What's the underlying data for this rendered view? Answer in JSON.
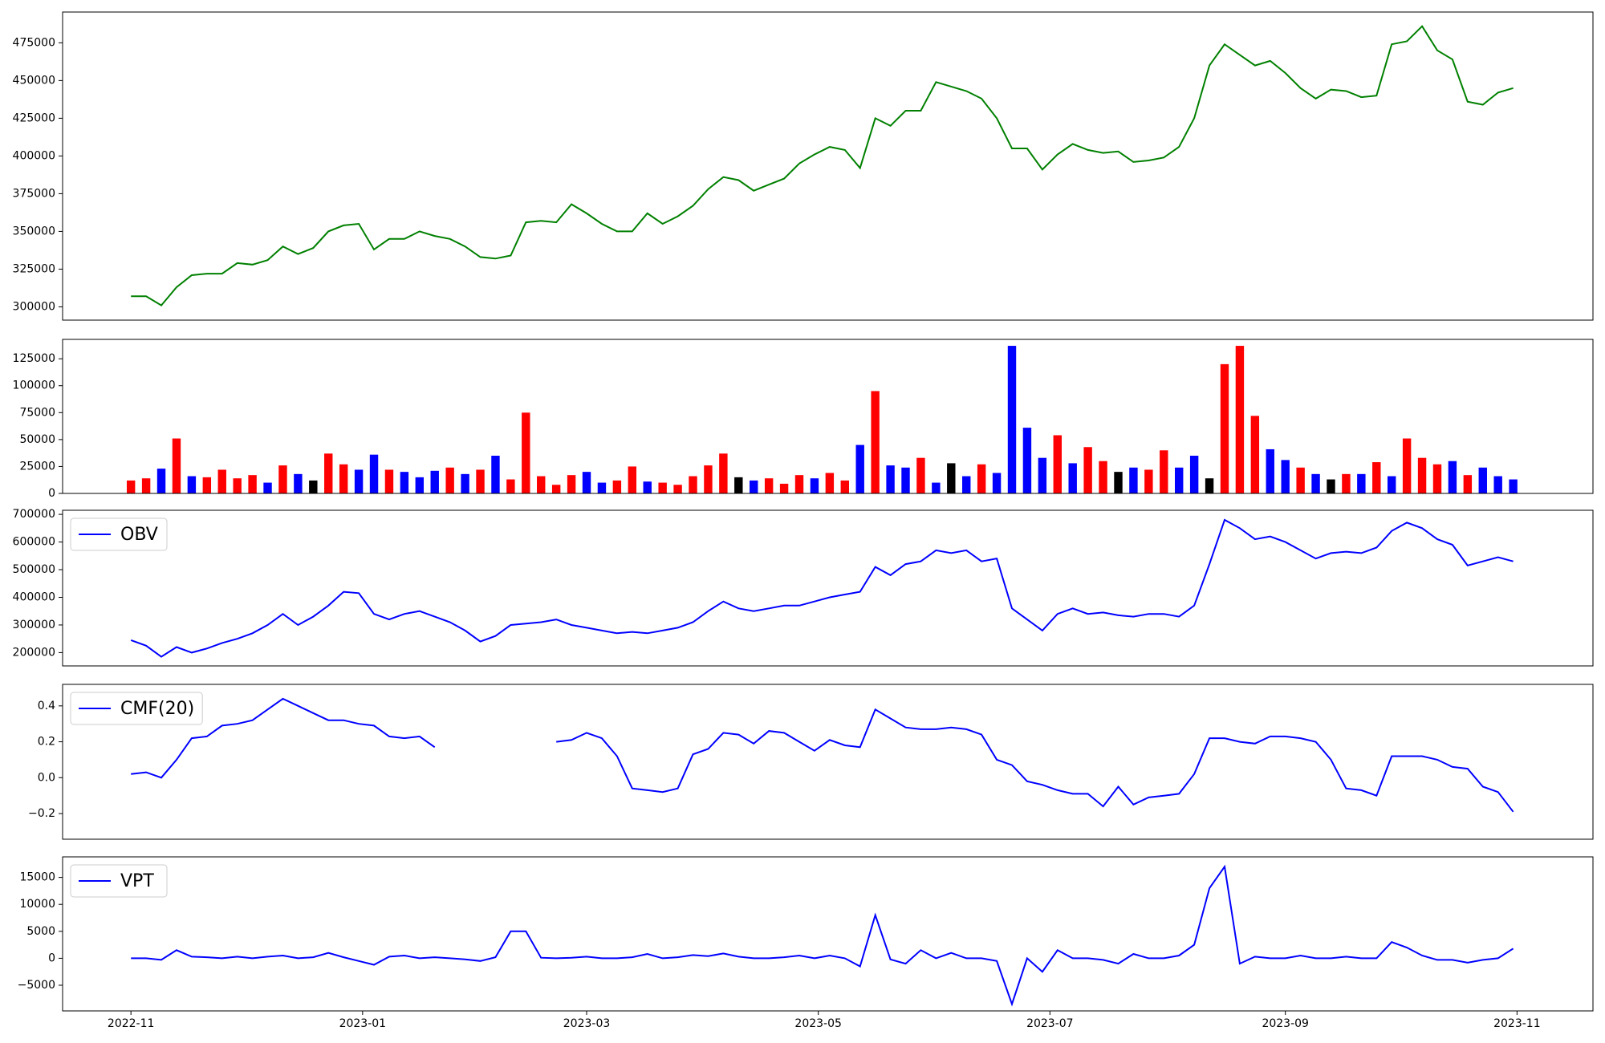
{
  "chart_data": [
    {
      "type": "line",
      "color": "green",
      "x": [
        0,
        4,
        8,
        12,
        16,
        20,
        24,
        28,
        32,
        36,
        40,
        44,
        48,
        52,
        56,
        60,
        64,
        68,
        72,
        76,
        80,
        84,
        88,
        92,
        96,
        100,
        104,
        108,
        112,
        116,
        120,
        124,
        128,
        132,
        136,
        140,
        144,
        148,
        152,
        156,
        160,
        164,
        168,
        172,
        176,
        180,
        184,
        188,
        192,
        196,
        200,
        204,
        208,
        212,
        216,
        220,
        224,
        228,
        232,
        236,
        240,
        244,
        248,
        252,
        256,
        260,
        264,
        268,
        272,
        276,
        280,
        284,
        288,
        292,
        296,
        300,
        304,
        308,
        312,
        316,
        320,
        324,
        328,
        332,
        336,
        340,
        344,
        348,
        352,
        356,
        360,
        364
      ],
      "values": [
        307000,
        307000,
        301000,
        313000,
        321000,
        322000,
        322000,
        329000,
        328000,
        331000,
        340000,
        335000,
        339000,
        350000,
        354000,
        355000,
        338000,
        345000,
        345000,
        350000,
        347000,
        345000,
        340000,
        333000,
        332000,
        334000,
        356000,
        357000,
        356000,
        368000,
        362000,
        355000,
        350000,
        350000,
        362000,
        355000,
        360000,
        367000,
        378000,
        386000,
        384000,
        377000,
        381000,
        385000,
        395000,
        401000,
        406000,
        404000,
        392000,
        425000,
        420000,
        430000,
        430000,
        449000,
        446000,
        443000,
        438000,
        425000,
        405000,
        405000,
        391000,
        401000,
        408000,
        404000,
        402000,
        403000,
        396000,
        397000,
        399000,
        406000,
        425000,
        460000,
        474000,
        467000,
        460000,
        463000,
        455000,
        445000,
        438000,
        444000,
        443000,
        439000,
        440000,
        474000,
        476000,
        486000,
        470000,
        464000,
        436000,
        434000,
        442000,
        445000
      ],
      "xlim": [
        -18,
        385
      ],
      "ylim": [
        291200,
        495400
      ],
      "yticks": [
        300000,
        325000,
        350000,
        375000,
        400000,
        425000,
        450000,
        475000
      ]
    },
    {
      "type": "bar",
      "x": [
        0,
        4,
        8,
        12,
        16,
        20,
        24,
        28,
        32,
        36,
        40,
        44,
        48,
        52,
        56,
        60,
        64,
        68,
        72,
        76,
        80,
        84,
        88,
        92,
        96,
        100,
        104,
        108,
        112,
        116,
        120,
        124,
        128,
        132,
        136,
        140,
        144,
        148,
        152,
        156,
        160,
        164,
        168,
        172,
        176,
        180,
        184,
        188,
        192,
        196,
        200,
        204,
        208,
        212,
        216,
        220,
        224,
        228,
        232,
        236,
        240,
        244,
        248,
        252,
        256,
        260,
        264,
        268,
        272,
        276,
        280,
        284,
        288,
        292,
        296,
        300,
        304,
        308,
        312,
        316,
        320,
        324,
        328,
        332,
        336,
        340,
        344,
        348,
        352,
        356,
        360,
        364
      ],
      "values": [
        12000,
        14000,
        23000,
        51000,
        16000,
        15000,
        22000,
        14000,
        17000,
        10000,
        26000,
        18000,
        12000,
        37000,
        27000,
        22000,
        36000,
        22000,
        20000,
        15000,
        21000,
        24000,
        18000,
        22000,
        35000,
        13000,
        75000,
        16000,
        8000,
        17000,
        20000,
        10000,
        12000,
        25000,
        11000,
        10000,
        8000,
        16000,
        26000,
        37000,
        15000,
        12000,
        14000,
        9000,
        17000,
        14000,
        19000,
        12000,
        45000,
        95000,
        26000,
        24000,
        33000,
        10000,
        28000,
        16000,
        27000,
        19000,
        137000,
        61000,
        33000,
        54000,
        28000,
        43000,
        30000,
        20000,
        24000,
        22000,
        40000,
        24000,
        35000,
        14000,
        120000,
        137000,
        72000,
        41000,
        31000,
        24000,
        18000,
        13000,
        18000,
        18000,
        29000,
        16000,
        51000,
        33000,
        27000,
        30000,
        17000,
        24000,
        16000,
        13000
      ],
      "colors": [
        "red",
        "red",
        "blue",
        "red",
        "blue",
        "red",
        "red",
        "red",
        "red",
        "blue",
        "red",
        "blue",
        "black",
        "red",
        "red",
        "blue",
        "blue",
        "red",
        "blue",
        "blue",
        "blue",
        "red",
        "blue",
        "red",
        "blue",
        "red",
        "red",
        "red",
        "red",
        "red",
        "blue",
        "blue",
        "red",
        "red",
        "blue",
        "red",
        "red",
        "red",
        "red",
        "red",
        "black",
        "blue",
        "red",
        "red",
        "red",
        "blue",
        "red",
        "red",
        "blue",
        "red",
        "blue",
        "blue",
        "red",
        "blue",
        "black",
        "blue",
        "red",
        "blue",
        "blue",
        "blue",
        "blue",
        "red",
        "blue",
        "red",
        "red",
        "black",
        "blue",
        "red",
        "red",
        "blue",
        "blue",
        "black",
        "red",
        "red",
        "red",
        "blue",
        "blue",
        "red",
        "blue",
        "black",
        "red",
        "blue",
        "red",
        "blue",
        "red",
        "red",
        "red",
        "blue",
        "red",
        "blue",
        "blue",
        "blue"
      ],
      "xlim": [
        -18,
        385
      ],
      "ylim": [
        0,
        143000
      ],
      "yticks": [
        0,
        25000,
        50000,
        75000,
        100000,
        125000
      ]
    },
    {
      "type": "line",
      "legend": "upper left",
      "x": [
        0,
        4,
        8,
        12,
        16,
        20,
        24,
        28,
        32,
        36,
        40,
        44,
        48,
        52,
        56,
        60,
        64,
        68,
        72,
        76,
        80,
        84,
        88,
        92,
        96,
        100,
        104,
        108,
        112,
        116,
        120,
        124,
        128,
        132,
        136,
        140,
        144,
        148,
        152,
        156,
        160,
        164,
        168,
        172,
        176,
        180,
        184,
        188,
        192,
        196,
        200,
        204,
        208,
        212,
        216,
        220,
        224,
        228,
        232,
        236,
        240,
        244,
        248,
        252,
        256,
        260,
        264,
        268,
        272,
        276,
        280,
        284,
        288,
        292,
        296,
        300,
        304,
        308,
        312,
        316,
        320,
        324,
        328,
        332,
        336,
        340,
        344,
        348,
        352,
        356,
        360,
        364
      ],
      "series": [
        {
          "name": "OBV",
          "color": "blue",
          "values": [
            245000,
            225000,
            185000,
            220000,
            200000,
            215000,
            235000,
            250000,
            270000,
            300000,
            340000,
            300000,
            330000,
            370000,
            420000,
            415000,
            340000,
            320000,
            340000,
            350000,
            330000,
            310000,
            280000,
            240000,
            260000,
            300000,
            305000,
            310000,
            320000,
            300000,
            290000,
            280000,
            270000,
            275000,
            270000,
            280000,
            290000,
            310000,
            350000,
            385000,
            360000,
            350000,
            360000,
            370000,
            370000,
            385000,
            400000,
            410000,
            420000,
            510000,
            480000,
            520000,
            530000,
            570000,
            560000,
            570000,
            530000,
            540000,
            360000,
            320000,
            280000,
            340000,
            360000,
            340000,
            345000,
            335000,
            330000,
            340000,
            340000,
            330000,
            370000,
            520000,
            680000,
            650000,
            610000,
            620000,
            600000,
            570000,
            540000,
            560000,
            565000,
            560000,
            580000,
            640000,
            670000,
            650000,
            610000,
            590000,
            515000,
            530000,
            545000,
            530000
          ]
        }
      ],
      "xlim": [
        -18,
        385
      ],
      "ylim": [
        151900,
        714800
      ],
      "yticks": [
        200000,
        300000,
        400000,
        500000,
        600000,
        700000
      ]
    },
    {
      "type": "line",
      "legend": "upper left",
      "x": [
        0,
        4,
        8,
        12,
        16,
        20,
        24,
        28,
        32,
        36,
        40,
        44,
        48,
        52,
        56,
        60,
        64,
        68,
        72,
        76,
        80,
        84,
        88,
        92,
        96,
        100,
        104,
        108,
        112,
        116,
        120,
        124,
        128,
        132,
        136,
        140,
        144,
        148,
        152,
        156,
        160,
        164,
        168,
        172,
        176,
        180,
        184,
        188,
        192,
        196,
        200,
        204,
        208,
        212,
        216,
        220,
        224,
        228,
        232,
        236,
        240,
        244,
        248,
        252,
        256,
        260,
        264,
        268,
        272,
        276,
        280,
        284,
        288,
        292,
        296,
        300,
        304,
        308,
        312,
        316,
        320,
        324,
        328,
        332,
        336,
        340,
        344,
        348,
        352,
        356,
        360,
        364
      ],
      "series": [
        {
          "name": "CMF(20)",
          "color": "blue",
          "values": [
            0.02,
            0.03,
            0.0,
            0.1,
            0.22,
            0.23,
            0.29,
            0.3,
            0.32,
            0.38,
            0.44,
            0.4,
            0.36,
            0.32,
            0.32,
            0.3,
            0.29,
            0.23,
            0.22,
            0.23,
            0.17,
            null,
            null,
            null,
            null,
            null,
            null,
            null,
            0.2,
            0.21,
            0.25,
            0.22,
            0.12,
            -0.06,
            -0.07,
            -0.08,
            -0.06,
            0.13,
            0.16,
            0.25,
            0.24,
            0.19,
            0.26,
            0.25,
            0.2,
            0.15,
            0.21,
            0.18,
            0.17,
            0.38,
            0.33,
            0.28,
            0.27,
            0.27,
            0.28,
            0.27,
            0.24,
            0.1,
            0.07,
            -0.02,
            -0.04,
            -0.07,
            -0.09,
            -0.09,
            -0.16,
            -0.05,
            -0.15,
            -0.11,
            -0.1,
            -0.09,
            0.02,
            0.22,
            0.22,
            0.2,
            0.19,
            0.23,
            0.23,
            0.22,
            0.2,
            0.1,
            -0.06,
            -0.07,
            -0.1,
            0.12,
            0.12,
            0.12,
            0.1,
            0.06,
            0.05,
            -0.05,
            -0.08,
            -0.19
          ]
        }
      ],
      "xlim": [
        -18,
        385
      ],
      "ylim": [
        -0.343,
        0.52
      ],
      "yticks": [
        {
          "value": -0.2,
          "label": "−0.2"
        },
        {
          "value": 0,
          "label": "0.0"
        },
        0.2,
        0.4
      ]
    },
    {
      "type": "line",
      "legend": "upper left",
      "x": [
        0,
        4,
        8,
        12,
        16,
        20,
        24,
        28,
        32,
        36,
        40,
        44,
        48,
        52,
        56,
        60,
        64,
        68,
        72,
        76,
        80,
        84,
        88,
        92,
        96,
        100,
        104,
        108,
        112,
        116,
        120,
        124,
        128,
        132,
        136,
        140,
        144,
        148,
        152,
        156,
        160,
        164,
        168,
        172,
        176,
        180,
        184,
        188,
        192,
        196,
        200,
        204,
        208,
        212,
        216,
        220,
        224,
        228,
        232,
        236,
        240,
        244,
        248,
        252,
        256,
        260,
        264,
        268,
        272,
        276,
        280,
        284,
        288,
        292,
        296,
        300,
        304,
        308,
        312,
        316,
        320,
        324,
        328,
        332,
        336,
        340,
        344,
        348,
        352,
        356,
        360,
        364
      ],
      "series": [
        {
          "name": "VPT",
          "color": "blue",
          "values": [
            0,
            0,
            -300,
            1500,
            300,
            200,
            0,
            300,
            0,
            300,
            500,
            0,
            200,
            1000,
            200,
            -500,
            -1200,
            300,
            500,
            0,
            200,
            0,
            -200,
            -500,
            200,
            5000,
            5000,
            100,
            0,
            100,
            300,
            0,
            0,
            200,
            800,
            0,
            200,
            600,
            400,
            900,
            300,
            0,
            0,
            200,
            500,
            0,
            500,
            0,
            -1500,
            8000,
            -200,
            -1000,
            1500,
            0,
            1000,
            0,
            0,
            -500,
            -8500,
            0,
            -2500,
            1500,
            0,
            0,
            -300,
            -1000,
            800,
            0,
            0,
            500,
            2500,
            13000,
            17000,
            -1000,
            300,
            0,
            0,
            500,
            0,
            0,
            300,
            0,
            0,
            3000,
            2000,
            500,
            -300,
            -300,
            -800,
            -300,
            0,
            1800
          ]
        }
      ],
      "xlim": [
        -18,
        385
      ],
      "ylim": [
        -9760,
        18810
      ],
      "yticks": [
        {
          "value": -5000,
          "label": "−5000"
        },
        0,
        5000,
        10000,
        15000
      ],
      "xticks": [
        {
          "value": 0,
          "label": "2022-11"
        },
        {
          "value": 61,
          "label": "2023-01"
        },
        {
          "value": 120,
          "label": "2023-03"
        },
        {
          "value": 181,
          "label": "2023-05"
        },
        {
          "value": 242,
          "label": "2023-07"
        },
        {
          "value": 304,
          "label": "2023-09"
        },
        {
          "value": 365,
          "label": "2023-11"
        }
      ]
    }
  ]
}
